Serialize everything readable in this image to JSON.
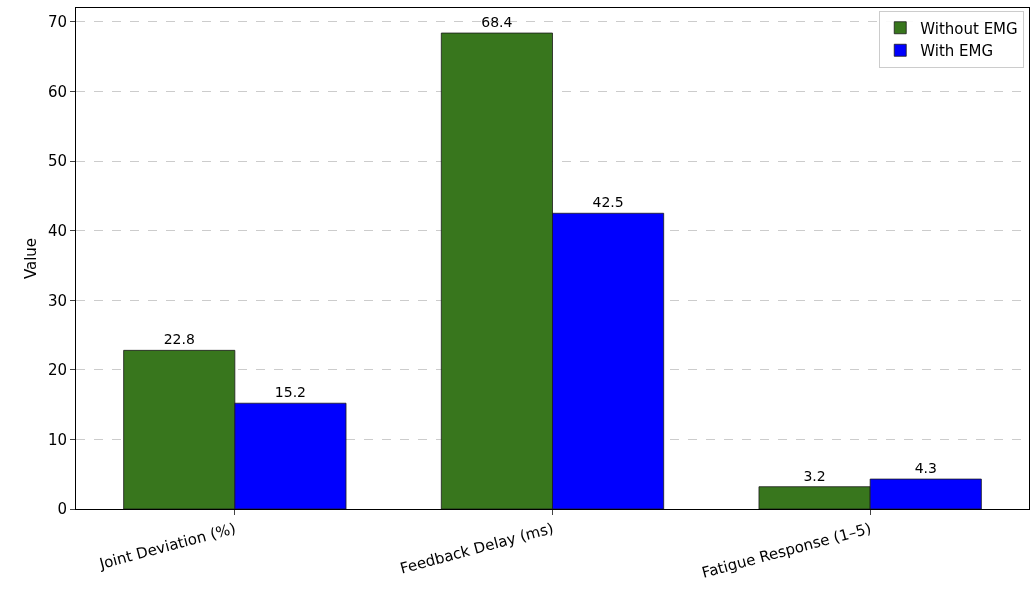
{
  "chart_data": {
    "type": "bar",
    "ylabel": "Value",
    "categories": [
      "Joint Deviation (%)",
      "Feedback Delay (ms)",
      "Fatigue Response (1–5)"
    ],
    "series": [
      {
        "name": "Without EMG",
        "color": "#38761d",
        "values": [
          22.8,
          68.4,
          3.2
        ]
      },
      {
        "name": "With EMG",
        "color": "#0000ff",
        "values": [
          15.2,
          42.5,
          4.3
        ]
      }
    ],
    "ylim": [
      0,
      72
    ],
    "yticks": [
      0,
      10,
      20,
      30,
      40,
      50,
      60,
      70
    ],
    "grid": "y",
    "legend": "top right",
    "data_labels": true
  }
}
